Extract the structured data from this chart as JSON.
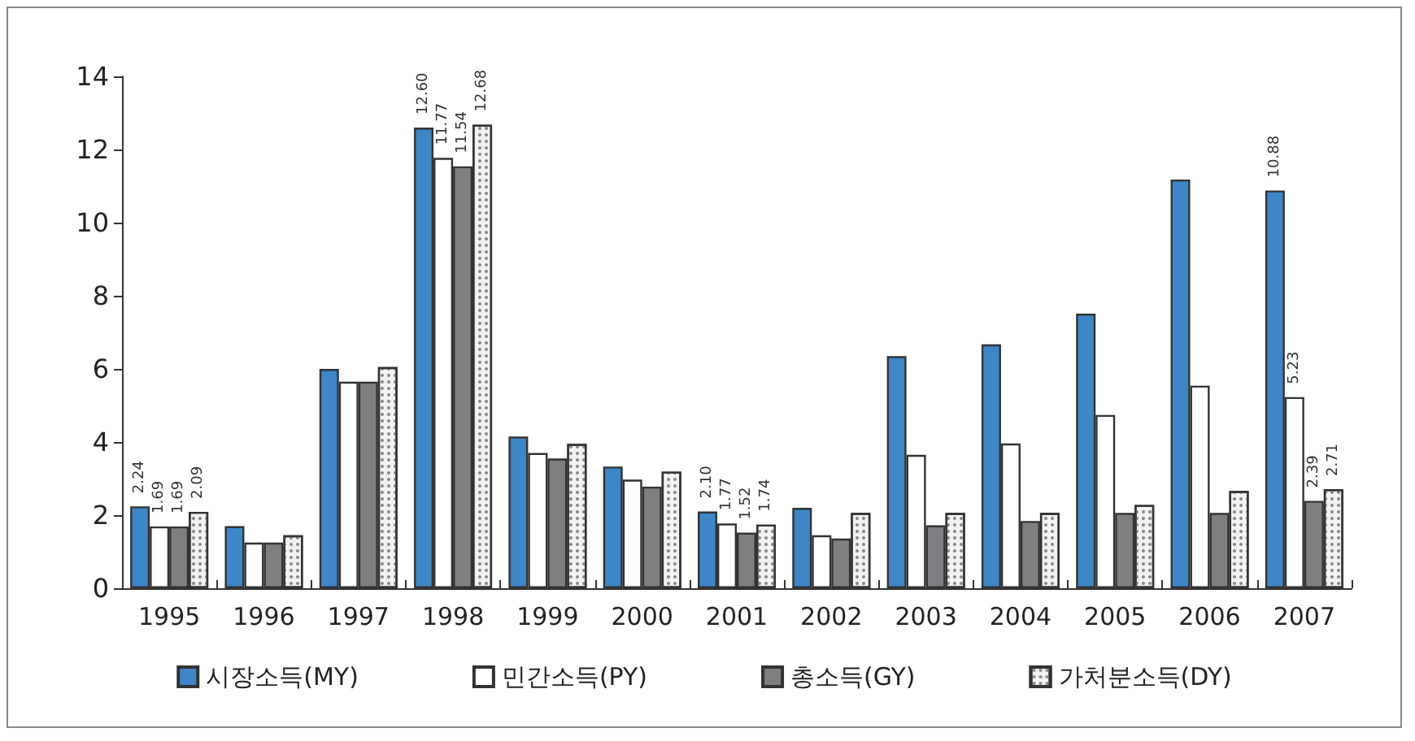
{
  "chart_data": {
    "type": "bar",
    "categories": [
      "1995",
      "1996",
      "1997",
      "1998",
      "1999",
      "2000",
      "2001",
      "2002",
      "2003",
      "2004",
      "2005",
      "2006",
      "2007"
    ],
    "series": [
      {
        "name": "시장소득(MY)",
        "color": "#3d86c8",
        "values": [
          2.24,
          1.7,
          6.0,
          12.6,
          4.15,
          3.33,
          2.1,
          2.2,
          6.35,
          6.67,
          7.51,
          11.18,
          10.88
        ],
        "value_labels": [
          "2.24",
          null,
          null,
          "12.60",
          null,
          null,
          "2.10",
          null,
          null,
          null,
          null,
          null,
          "10.88"
        ]
      },
      {
        "name": "민간소득(PY)",
        "color": "#ffffff",
        "values": [
          1.69,
          1.25,
          5.65,
          11.77,
          3.7,
          2.97,
          1.77,
          1.45,
          3.65,
          3.96,
          4.74,
          5.54,
          5.23
        ],
        "value_labels": [
          "1.69",
          null,
          null,
          "11.77",
          null,
          null,
          "1.77",
          null,
          null,
          null,
          null,
          null,
          "5.23"
        ]
      },
      {
        "name": "총소득(GY)",
        "color": "#7f7f82",
        "values": [
          1.69,
          1.25,
          5.65,
          11.54,
          3.55,
          2.78,
          1.52,
          1.36,
          1.72,
          1.84,
          2.06,
          2.06,
          2.39
        ],
        "value_labels": [
          "1.69",
          null,
          null,
          "11.54",
          null,
          null,
          "1.52",
          null,
          null,
          null,
          null,
          null,
          "2.39"
        ]
      },
      {
        "name": "가처분소득(DY)",
        "color": "#f2f2f2",
        "values": [
          2.09,
          1.45,
          6.05,
          12.68,
          3.95,
          3.19,
          1.74,
          2.06,
          2.06,
          2.06,
          2.28,
          2.66,
          2.71
        ],
        "value_labels": [
          "2.09",
          null,
          null,
          "12.68",
          null,
          null,
          "1.74",
          null,
          null,
          null,
          null,
          null,
          "2.71"
        ]
      }
    ],
    "ylim": [
      0,
      14
    ],
    "yticks": [
      0,
      2,
      4,
      6,
      8,
      10,
      12,
      14
    ],
    "legend": "bottom"
  }
}
